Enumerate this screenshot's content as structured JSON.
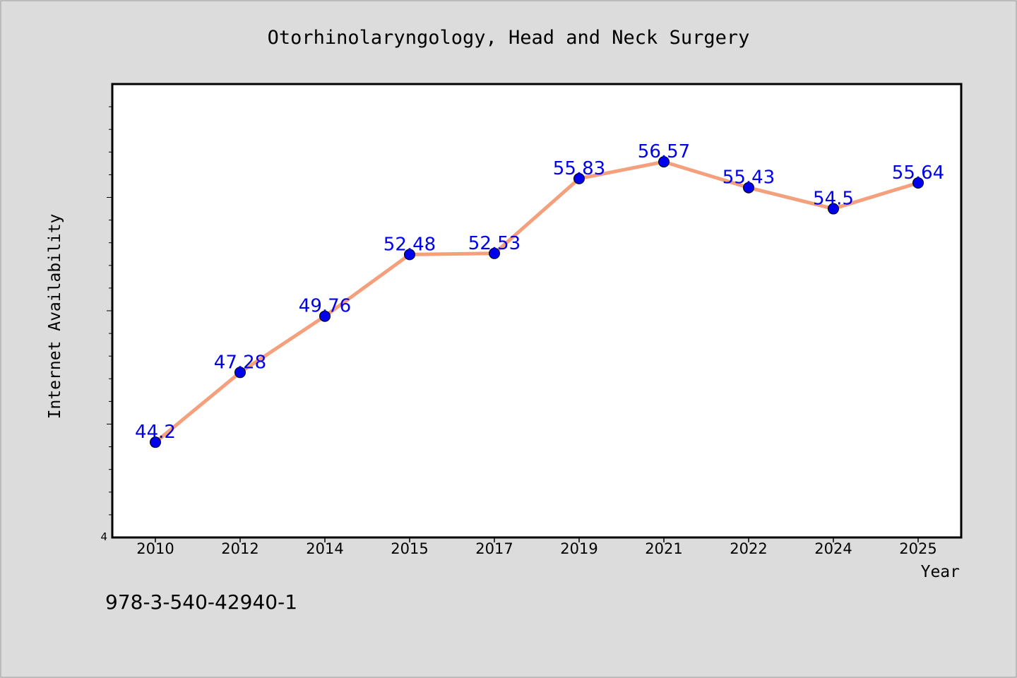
{
  "chart_data": {
    "type": "line",
    "title": "Otorhinolaryngology, Head and Neck Surgery",
    "xlabel": "Year",
    "ylabel": "Internet Availability",
    "categories": [
      "2010",
      "2012",
      "2014",
      "2015",
      "2017",
      "2019",
      "2021",
      "2022",
      "2024",
      "2025"
    ],
    "series": [
      {
        "values": [
          44.2,
          47.28,
          49.76,
          52.48,
          52.53,
          55.83,
          56.57,
          55.43,
          54.5,
          55.64
        ],
        "data_labels": [
          "44.2",
          "47.28",
          "49.76",
          "52.48",
          "52.53",
          "55.83",
          "56.57",
          "55.43",
          "54.5",
          "55.64"
        ]
      }
    ],
    "y_tick_label": "4",
    "ylim": [
      40,
      60
    ],
    "grid": false,
    "line_color": "#f4a07c",
    "marker_color": "#0000ee",
    "label_color": "#0000ee"
  },
  "footnote": "978-3-540-42940-1"
}
